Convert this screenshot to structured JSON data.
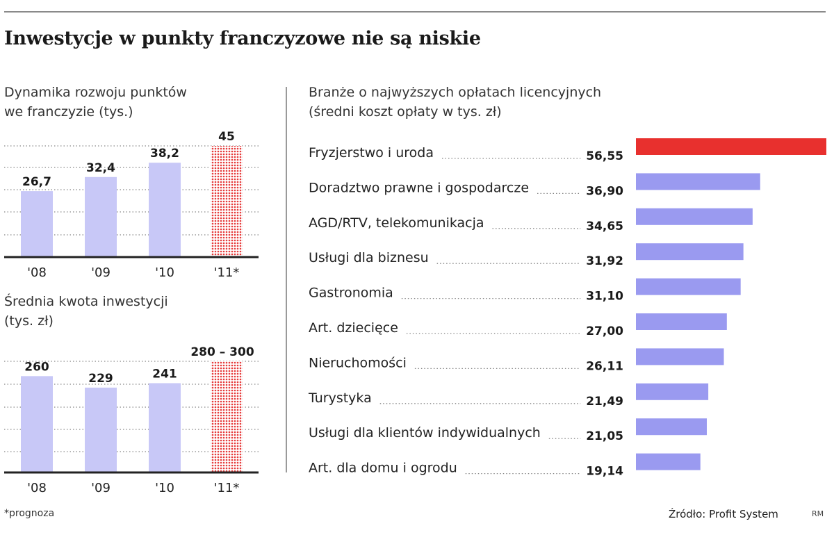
{
  "title": "Inwestycje w punkty franczyzowe nie są niskie",
  "footnote": "*prognoza",
  "source": "Źródło: Profit System",
  "credit": "RM",
  "colors": {
    "bar": "#c8c8f7",
    "forecast": "#e63b3b",
    "highlight": "#e8302e",
    "hbar": "#9a9af0",
    "axis": "#222222"
  },
  "chart_data": [
    {
      "type": "bar",
      "title": "Dynamika rozwoju punktów",
      "subtitle": "we franczyzie (tys.)",
      "categories": [
        "'08",
        "'09",
        "'10",
        "'11*"
      ],
      "values": [
        26.7,
        32.4,
        38.2,
        45
      ],
      "value_labels": [
        "26,7",
        "32,4",
        "38,2",
        "45"
      ],
      "forecast_index": 3,
      "ylim": [
        0,
        45
      ],
      "grid": true
    },
    {
      "type": "bar",
      "title": "Średnia kwota inwestycji",
      "subtitle": "(tys. zł)",
      "categories": [
        "'08",
        "'09",
        "'10",
        "'11*"
      ],
      "values": [
        260,
        229,
        241,
        300
      ],
      "range_low_forecast": 280,
      "value_labels": [
        "260",
        "229",
        "241",
        "280 – 300"
      ],
      "forecast_index": 3,
      "ylim": [
        0,
        300
      ],
      "grid": true
    },
    {
      "type": "bar",
      "orientation": "horizontal",
      "title": "Branże o najwyższych opłatach licencyjnych",
      "subtitle": "(średni koszt opłaty w tys. zł)",
      "categories": [
        "Fryzjerstwo i uroda",
        "Doradztwo prawne i gospodarcze",
        "AGD/RTV, telekomunikacja",
        "Usługi dla biznesu",
        "Gastronomia",
        "Art. dziecięce",
        "Nieruchomości",
        "Turystyka",
        "Usługi dla klientów indywidualnych",
        "Art. dla domu i ogrodu"
      ],
      "values": [
        56.55,
        36.9,
        34.65,
        31.92,
        31.1,
        27.0,
        26.11,
        21.49,
        21.05,
        19.14
      ],
      "value_labels": [
        "56,55",
        "36,90",
        "34,65",
        "31,92",
        "31,10",
        "27,00",
        "26,11",
        "21,49",
        "21,05",
        "19,14"
      ],
      "highlight_index": 0
    }
  ]
}
